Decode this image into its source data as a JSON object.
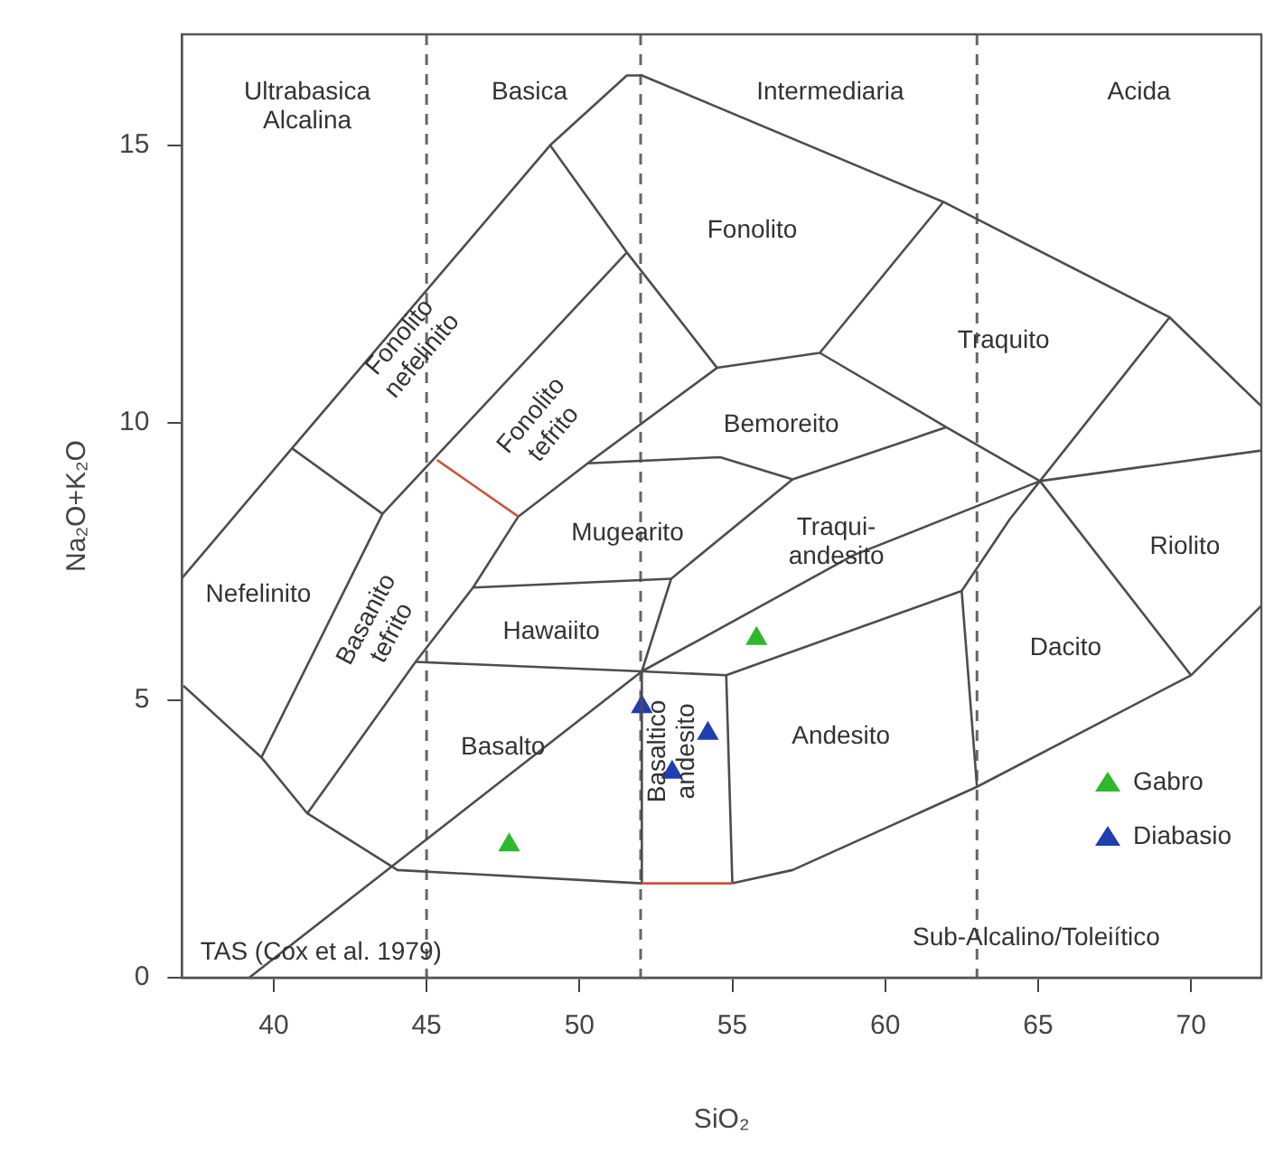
{
  "chart_data": {
    "type": "line",
    "xlabel": "SiO₂",
    "ylabel": "Na₂O+K₂O",
    "xlim": [
      37,
      72.3
    ],
    "ylim": [
      0,
      17
    ],
    "xticks": [
      40,
      45,
      50,
      55,
      60,
      65,
      70
    ],
    "yticks": [
      0,
      5,
      10,
      15
    ],
    "grid": false,
    "legend": "bottom right",
    "line_style": "solid",
    "series": [
      {
        "color": "#4d4d4d",
        "x": [
          37.0,
          40.6,
          49.04,
          51.55,
          52.04,
          61.9,
          69.3,
          72.3
        ],
        "values": [
          7.2,
          9.54,
          15.0,
          16.26,
          16.26,
          13.98,
          11.9,
          10.3
        ]
      },
      {
        "color": "#4d4d4d",
        "x": [
          37.05,
          39.6,
          41.1,
          44.05,
          52.04
        ],
        "values": [
          5.26,
          3.97,
          2.96,
          1.94,
          1.7
        ]
      },
      {
        "color": "#c8553a",
        "x": [
          52.04,
          55.0
        ],
        "values": [
          1.7,
          1.7
        ]
      },
      {
        "color": "#4d4d4d",
        "x": [
          55.0,
          56.97,
          63.0,
          70.0,
          72.3
        ],
        "values": [
          1.7,
          1.94,
          3.44,
          5.45,
          6.7
        ]
      },
      {
        "color": "#4d4d4d",
        "x": [
          40.6,
          43.56,
          39.6
        ],
        "values": [
          9.54,
          8.36,
          3.97
        ]
      },
      {
        "color": "#4d4d4d",
        "x": [
          43.56,
          51.55
        ],
        "values": [
          8.36,
          13.07
        ]
      },
      {
        "color": "#c8553a",
        "x": [
          45.34,
          48.0
        ],
        "values": [
          9.33,
          8.31
        ]
      },
      {
        "color": "#4d4d4d",
        "x": [
          41.1,
          44.64,
          46.52,
          48.0,
          50.27,
          54.5
        ],
        "values": [
          2.96,
          5.69,
          7.03,
          8.31,
          9.27,
          10.99
        ]
      },
      {
        "color": "#4d4d4d",
        "x": [
          49.04,
          51.55,
          54.5,
          57.86,
          61.9
        ],
        "values": [
          15.0,
          13.07,
          10.99,
          11.26,
          13.98
        ]
      },
      {
        "color": "#4d4d4d",
        "x": [
          57.86,
          62.0,
          65.06,
          69.3
        ],
        "values": [
          11.26,
          9.92,
          8.95,
          11.9
        ]
      },
      {
        "color": "#4d4d4d",
        "x": [
          50.27,
          54.6,
          56.97,
          62.0
        ],
        "values": [
          9.27,
          9.38,
          8.98,
          9.92
        ]
      },
      {
        "color": "#4d4d4d",
        "x": [
          52.04,
          52.04,
          53.0,
          56.97
        ],
        "values": [
          1.7,
          5.52,
          7.19,
          8.98
        ]
      },
      {
        "color": "#4d4d4d",
        "x": [
          46.52,
          53.0
        ],
        "values": [
          7.03,
          7.19
        ]
      },
      {
        "color": "#4d4d4d",
        "x": [
          44.64,
          52.04,
          54.8,
          62.5,
          64.07,
          65.06,
          70.0
        ],
        "values": [
          5.69,
          5.52,
          5.45,
          6.97,
          8.26,
          8.95,
          5.45
        ]
      },
      {
        "color": "#4d4d4d",
        "x": [
          39.2,
          52.04,
          58.95,
          65.06,
          72.3
        ],
        "values": [
          0,
          5.52,
          7.61,
          8.95,
          9.5
        ]
      },
      {
        "color": "#4d4d4d",
        "x": [
          54.8,
          55.0
        ],
        "values": [
          5.45,
          1.7
        ]
      },
      {
        "color": "#4d4d4d",
        "x": [
          62.5,
          63.0
        ],
        "values": [
          6.97,
          3.44
        ]
      },
      {
        "name": "Gabro",
        "type": "scatter",
        "marker": "triangle",
        "color": "#2eb82e",
        "x": [
          47.7,
          55.79
        ],
        "values": [
          2.39,
          6.11
        ]
      },
      {
        "name": "Diabasio",
        "type": "scatter",
        "marker": "triangle",
        "color": "#1f3fb0",
        "x": [
          52.04,
          53.03,
          54.2
        ],
        "values": [
          4.88,
          3.7,
          4.4
        ]
      }
    ],
    "ref_lines": [
      {
        "axis": "x",
        "value": 45,
        "line_style": "dashed",
        "color": "#666666"
      },
      {
        "axis": "x",
        "value": 52,
        "line_style": "dashed",
        "color": "#666666"
      },
      {
        "axis": "x",
        "value": 63,
        "line_style": "dashed",
        "color": "#666666"
      }
    ],
    "annotations": [
      "Ultrabasica\nAlcalina",
      "Basica",
      "Intermediaria",
      "Acida",
      "Fonolito",
      "Traquito",
      "Bemoreito",
      "Fonolito\nnefelinito",
      "Fonolito\ntefrito",
      "Mugearito",
      "Traqui-\nandesito",
      "Riolito",
      "Nefelinito",
      "Basanito\ntefrito",
      "Hawaiito",
      "Basalto",
      "Basaltico\nandesito",
      "Andesito",
      "Dacito",
      "Sub-Alcalino/Toleiítico",
      "TAS (Cox et al. 1979)"
    ]
  }
}
